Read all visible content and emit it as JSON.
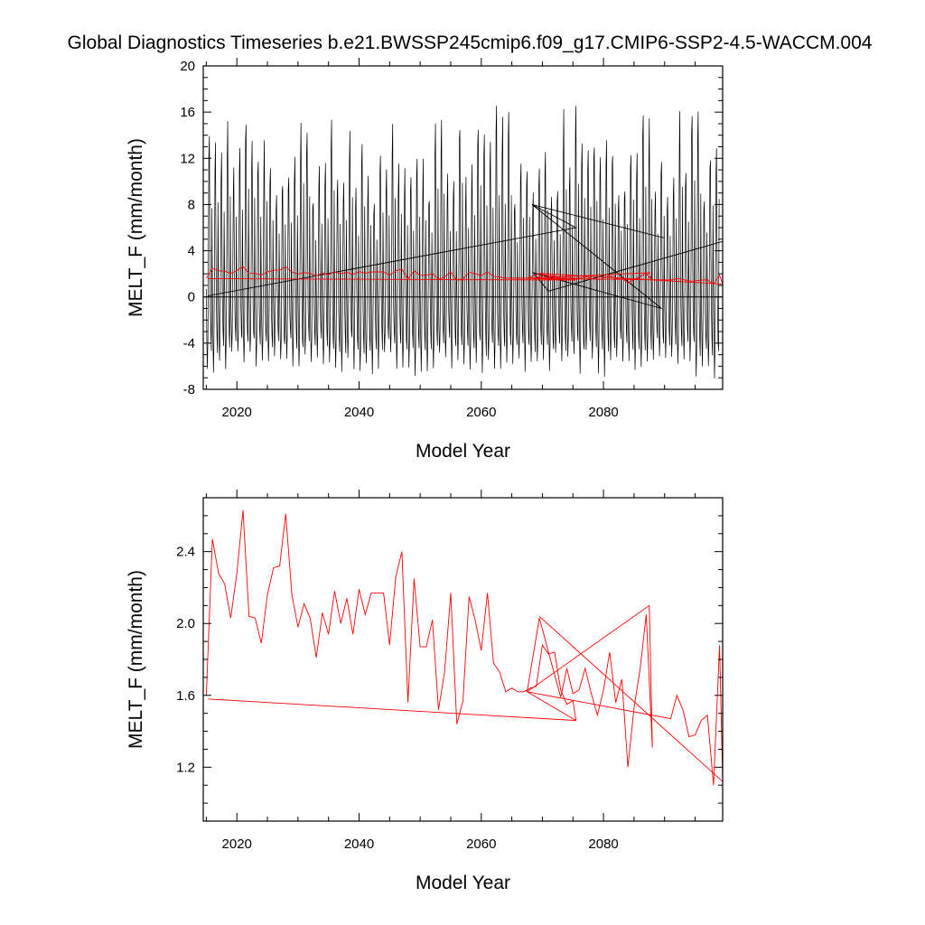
{
  "figure_title": "Global Diagnostics Timeseries b.e21.BWSSP245cmip6.f09_g17.CMIP6-SSP2-4.5-WACCM.004",
  "chart_data": [
    {
      "type": "line",
      "title": "",
      "xlabel": "Model Year",
      "ylabel": "MELT_F (mm/month)",
      "xlim": [
        2014.5,
        2099.5
      ],
      "ylim": [
        -8,
        20
      ],
      "xticks": [
        2020,
        2040,
        2060,
        2080
      ],
      "yticks": [
        -8,
        -4,
        0,
        4,
        8,
        12,
        16,
        20
      ],
      "zero_line": true,
      "monthly": {
        "color": "#000000",
        "start_year": 2015,
        "end_year": 2098,
        "seasonal_max_range": [
          9,
          17.5
        ],
        "seasonal_min_range": [
          -7.5,
          -5.5
        ],
        "extra_segments": [
          {
            "x": [
              2015.3,
              2067.3,
              2075.5,
              2068.3,
              2090,
              2068.3,
              2089.5,
              2068.5,
              2071,
              2099.5
            ],
            "y": [
              0.1,
              5.2,
              6.0,
              8.0,
              5.1,
              8.0,
              -1.0,
              2.1,
              0.5,
              4.8
            ]
          }
        ]
      },
      "series": [
        {
          "color": "#ff0000",
          "x": [
            2015,
            2016,
            2017,
            2018,
            2019,
            2020,
            2021,
            2022,
            2023,
            2024,
            2025,
            2026,
            2027,
            2028,
            2029,
            2030,
            2031,
            2032,
            2033,
            2034,
            2035,
            2036,
            2037,
            2038,
            2039,
            2040,
            2041,
            2042,
            2043,
            2044,
            2045,
            2046,
            2047,
            2048,
            2049,
            2050,
            2051,
            2052,
            2053,
            2054,
            2055,
            2056,
            2057,
            2058,
            2059,
            2060,
            2061,
            2062,
            2063,
            2064,
            2065,
            2066,
            2067,
            2068,
            2069,
            2070,
            2071,
            2072,
            2073,
            2074,
            2075,
            2075.5,
            2015.3,
            2075.5,
            2067.5,
            2069.5,
            2071,
            2073,
            2074,
            2075,
            2076,
            2077,
            2078,
            2079,
            2080,
            2081,
            2082,
            2083,
            2084,
            2085,
            2086,
            2087,
            2088,
            2087.5,
            2067.5,
            2091,
            2092,
            2093,
            2094,
            2095,
            2096,
            2097,
            2098,
            2099,
            2099.5,
            2069.5
          ],
          "values": [
            1.6,
            2.47,
            2.28,
            2.22,
            2.03,
            2.28,
            2.63,
            2.04,
            2.03,
            1.89,
            2.16,
            2.31,
            2.32,
            2.61,
            2.16,
            1.98,
            2.11,
            2.03,
            1.81,
            2.06,
            1.94,
            2.18,
            2.0,
            2.14,
            1.94,
            2.19,
            2.05,
            2.17,
            2.17,
            2.17,
            1.88,
            2.26,
            2.4,
            1.56,
            2.25,
            1.87,
            1.87,
            2.02,
            1.52,
            1.73,
            2.17,
            1.44,
            1.57,
            2.15,
            2.02,
            1.85,
            2.17,
            1.78,
            1.73,
            1.62,
            1.64,
            1.62,
            1.62,
            1.64,
            1.65,
            1.88,
            1.83,
            1.84,
            1.63,
            1.55,
            1.57,
            1.46,
            1.58,
            1.46,
            1.62,
            2.03,
            1.84,
            1.59,
            1.75,
            1.61,
            1.63,
            1.75,
            1.61,
            1.49,
            1.63,
            1.84,
            1.56,
            1.69,
            1.2,
            1.53,
            1.75,
            2.05,
            1.31,
            2.1,
            1.62,
            1.47,
            1.6,
            1.52,
            1.37,
            1.38,
            1.46,
            1.49,
            1.1,
            1.88,
            1.12,
            2.04
          ]
        }
      ]
    },
    {
      "type": "line",
      "title": "",
      "xlabel": "Model Year",
      "ylabel": "MELT_F (mm/month)",
      "xlim": [
        2014.5,
        2099.5
      ],
      "ylim": [
        0.9,
        2.7
      ],
      "xticks": [
        2020,
        2040,
        2060,
        2080
      ],
      "yticks": [
        1.2,
        1.6,
        2.0,
        2.4
      ],
      "series_ref": 0
    }
  ]
}
